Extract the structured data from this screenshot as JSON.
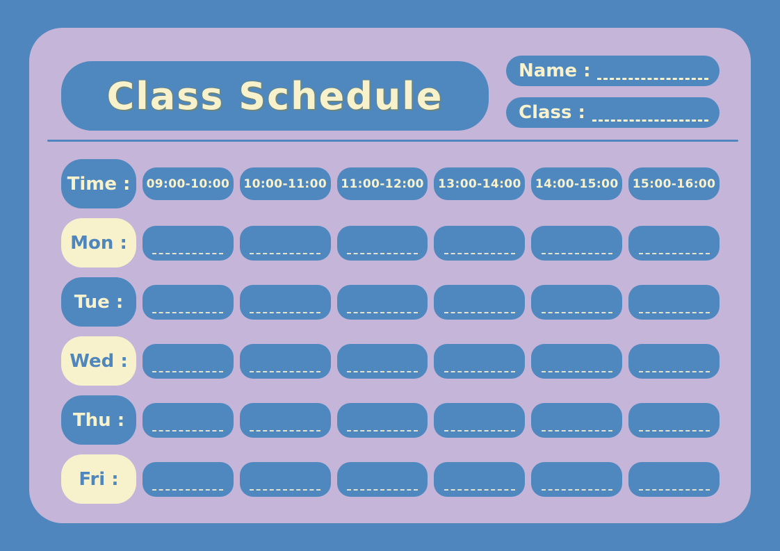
{
  "header": {
    "title": "Class Schedule",
    "name_label": "Name :",
    "class_label": "Class :"
  },
  "schedule": {
    "time_label": "Time :",
    "time_slots": [
      "09:00-10:00",
      "10:00-11:00",
      "11:00-12:00",
      "13:00-14:00",
      "14:00-15:00",
      "15:00-16:00"
    ],
    "days": [
      {
        "label": "Mon :",
        "style": "cream"
      },
      {
        "label": "Tue :",
        "style": "blue"
      },
      {
        "label": "Wed :",
        "style": "cream"
      },
      {
        "label": "Thu :",
        "style": "blue"
      },
      {
        "label": "Fri :",
        "style": "cream"
      }
    ]
  },
  "colors": {
    "background_blue": "#4E86BD",
    "card_purple": "#C4B5D9",
    "box_blue": "#4F88BF",
    "cream": "#F7F2CC",
    "day_text_blue": "#4E86BD",
    "cell_line": "#E3E3D0"
  }
}
